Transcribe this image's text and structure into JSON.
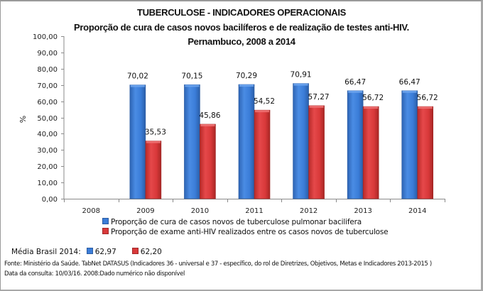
{
  "chart_data": {
    "type": "bar",
    "title": "TUBERCULOSE - INDICADORES OPERACIONAIS",
    "subtitle": "Proporção de cura de casos novos bacilíferos e de realização de testes anti-HIV.",
    "subtitle2": "Pernambuco, 2008 a 2014",
    "xlabel": "",
    "ylabel": "%",
    "ylim": [
      0,
      100
    ],
    "ytick_step": 10,
    "ytick_labels": [
      "0,00",
      "10,00",
      "20,00",
      "30,00",
      "40,00",
      "50,00",
      "60,00",
      "70,00",
      "80,00",
      "90,00",
      "100,00"
    ],
    "categories": [
      "2008",
      "2009",
      "2010",
      "2011",
      "2012",
      "2013",
      "2014"
    ],
    "series": [
      {
        "name": "Proporção de cura de casos novos de tuberculose pulmonar bacilifera",
        "color": "#3b7dd8",
        "values": [
          null,
          70.02,
          70.15,
          70.29,
          70.91,
          66.47,
          66.47
        ],
        "labels": [
          "",
          "70,02",
          "70,15",
          "70,29",
          "70,91",
          "66,47",
          "66,47"
        ]
      },
      {
        "name": "Proporção de exame anti-HIV realizados entre os casos novos de tuberculose",
        "color": "#d9393a",
        "values": [
          null,
          35.53,
          45.86,
          54.52,
          57.27,
          56.72,
          56.72
        ],
        "labels": [
          "",
          "35,53",
          "45,86",
          "54,52",
          "57,27",
          "56,72",
          "56,72"
        ]
      }
    ],
    "legend_position": "bottom",
    "grid": false
  },
  "media": {
    "label": "Média Brasil 2014:",
    "blue_value": "62,97",
    "red_value": "62,20"
  },
  "notes": {
    "fonte": "Fonte: Ministério da Saúde. TabNet DATASUS (Indicadores 36 - universal e 37 - específico, do rol de Diretrizes, Objetivos, Metas e Indicadores 2013-2015 )",
    "data": "Data da consulta: 10/03/16. 2008:Dado numérico não disponível"
  }
}
